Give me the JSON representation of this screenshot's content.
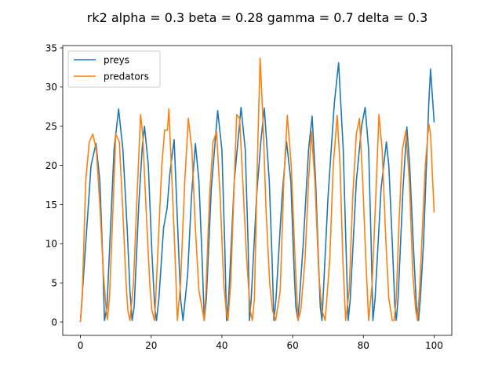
{
  "chart_data": {
    "type": "line",
    "title": "rk2 alpha = 0.3 beta = 0.28 gamma = 0.7 delta = 0.3",
    "xlabel": "",
    "ylabel": "",
    "xlim": [
      -5,
      105
    ],
    "ylim": [
      -1.7,
      35.3
    ],
    "xticks": [
      0,
      20,
      40,
      60,
      80,
      100
    ],
    "yticks": [
      0,
      5,
      10,
      15,
      20,
      25,
      30,
      35
    ],
    "grid": false,
    "legend": "upper-left",
    "series": [
      {
        "name": "preys",
        "color": "#1f77b4",
        "x": [
          0,
          1.5,
          3,
          4.4,
          5.5,
          6.3,
          6.8,
          7.5,
          8.5,
          9.5,
          10.8,
          12,
          13.2,
          14,
          14.6,
          15.2,
          16.5,
          17.5,
          18.1,
          19.2,
          20.2,
          21,
          21.5,
          22.2,
          23.5,
          24.5,
          25.3,
          26.5,
          27.7,
          28.3,
          29,
          30.3,
          31.4,
          32.5,
          33.5,
          34.4,
          35,
          35.6,
          37,
          38.8,
          40,
          40.8,
          41.3,
          41.9,
          43.5,
          45.4,
          46.6,
          47.4,
          47.8,
          48.3,
          49.8,
          51,
          52,
          53.4,
          54.2,
          54.7,
          55.3,
          57,
          58.3,
          59.5,
          60.3,
          60.9,
          61.5,
          63,
          64.5,
          65.5,
          66.5,
          67.3,
          67.8,
          68.3,
          70,
          71.8,
          73,
          74.3,
          75.2,
          75.7,
          76.3,
          78,
          79.5,
          80.5,
          81.5,
          82.2,
          82.7,
          83.3,
          85,
          86.5,
          87.2,
          88.2,
          88.9,
          89.3,
          89.8,
          91.2,
          92.3,
          93.1,
          94.1,
          95,
          95.6,
          96.1,
          97,
          98.5,
          99,
          100
        ],
        "y": [
          0,
          10,
          20,
          22.8,
          18,
          8,
          0.2,
          2,
          12,
          22,
          27.2,
          22,
          12,
          4,
          0.2,
          2,
          15,
          22.5,
          25,
          20,
          9,
          2,
          0.2,
          3,
          12,
          14.5,
          19,
          23.3,
          10,
          3,
          0.2,
          6,
          16,
          22.8,
          18,
          8,
          0.2,
          3,
          17,
          27,
          22,
          10,
          0.2,
          3,
          18,
          27.4,
          22,
          10,
          0.2,
          3,
          16,
          23,
          27.3,
          18,
          8,
          0.2,
          3,
          16,
          23,
          18,
          8,
          2,
          0.2,
          10,
          22,
          26.3,
          18,
          8,
          2,
          0.2,
          16,
          28,
          33.1,
          22,
          8,
          0.2,
          3,
          18,
          25,
          27.4,
          22,
          10,
          0.2,
          3,
          17,
          23,
          20,
          10,
          2,
          0.2,
          3,
          17,
          24.9,
          20,
          10,
          2,
          0.2,
          3,
          10,
          28,
          32.3,
          25.5
        ]
      },
      {
        "name": "predators",
        "color": "#ff7f0e",
        "x": [
          0,
          0.5,
          1.5,
          2.5,
          3.5,
          4.5,
          5.5,
          6.5,
          7.3,
          7.6,
          8.2,
          9,
          10,
          11,
          12,
          12.9,
          13.4,
          14,
          15,
          16,
          17,
          17.6,
          18.5,
          19.6,
          20.2,
          21,
          22,
          23,
          23.8,
          24.6,
          25,
          25.7,
          26.8,
          27.4,
          28.3,
          29.5,
          30.5,
          31.5,
          32.5,
          33.5,
          34.5,
          35,
          35.5,
          36.5,
          37.5,
          38.5,
          39.5,
          40.5,
          41.2,
          41.7,
          42.5,
          43.5,
          44.2,
          45,
          45.9,
          47,
          48,
          48.6,
          49.2,
          50,
          50.8,
          51.6,
          52.5,
          53.5,
          54.3,
          55.2,
          56.5,
          57.5,
          58.5,
          59.6,
          60.7,
          61.5,
          62.3,
          63.5,
          64.5,
          65.3,
          66.3,
          67.4,
          68.3,
          69.2,
          70.5,
          71.5,
          72.6,
          73.4,
          74.2,
          75,
          76,
          77,
          78,
          78.9,
          79.8,
          80.7,
          81.5,
          82.5,
          83.5,
          84.4,
          85.3,
          86.4,
          87.2,
          88.2,
          88.7,
          89.3,
          90,
          91,
          92,
          93,
          94,
          94.8,
          95.3,
          96,
          97.5,
          98.5,
          99,
          100
        ],
        "y": [
          0,
          3,
          18,
          23,
          24,
          22,
          15,
          6,
          1.5,
          0.3,
          3,
          12,
          24,
          23,
          14,
          5,
          1.5,
          0.2,
          5,
          16,
          26.5,
          24,
          15,
          5,
          1.5,
          0.2,
          10,
          20,
          24.5,
          24.5,
          27.2,
          20,
          8,
          0.2,
          5,
          18,
          26,
          22,
          12,
          4,
          1.5,
          0.2,
          4,
          16,
          23,
          24.3,
          16,
          5,
          1.5,
          0.2,
          5,
          18,
          26.5,
          26,
          18,
          8,
          1.5,
          0.2,
          3,
          20,
          33.7,
          26,
          14,
          5,
          1.5,
          0.2,
          4,
          18,
          26.4,
          20,
          8,
          0.2,
          1.5,
          8,
          18,
          24.3,
          18,
          6,
          1.5,
          0.2,
          8,
          20,
          26.4,
          20,
          8,
          0.2,
          4,
          16,
          24,
          26,
          18,
          8,
          0.2,
          5,
          16,
          26.5,
          22,
          10,
          3,
          0.2,
          0.2,
          3,
          12,
          22,
          24.4,
          18,
          6,
          1.5,
          0.2,
          5,
          20,
          25.3,
          24,
          14
        ]
      }
    ]
  }
}
